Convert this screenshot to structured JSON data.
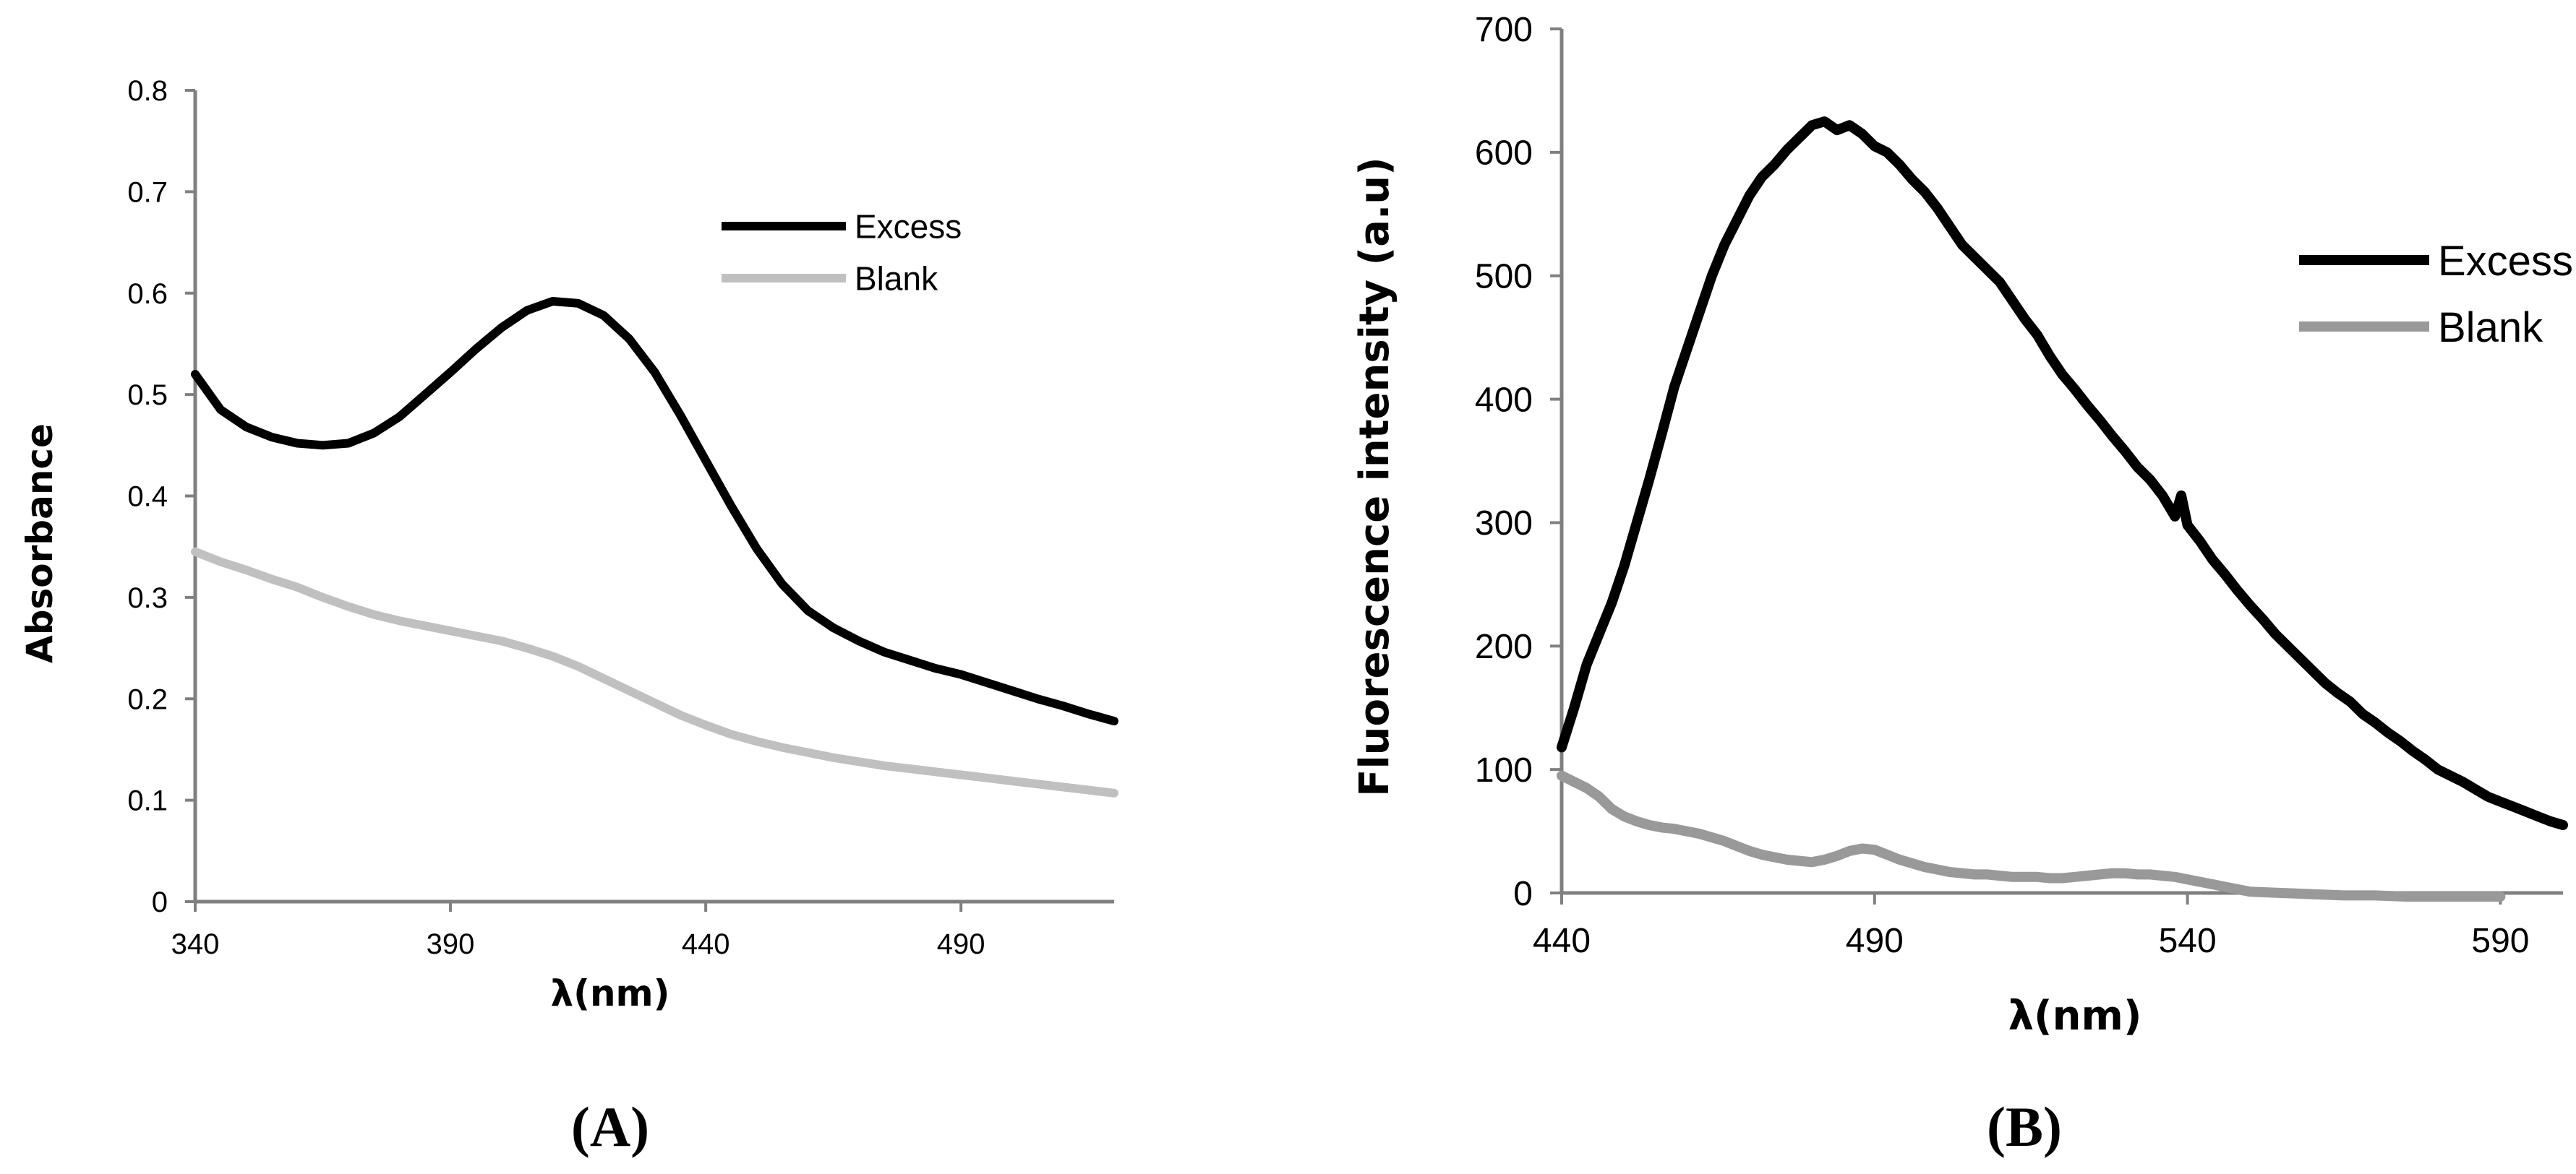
{
  "chart_data": [
    {
      "type": "line",
      "panel_label": "(A)",
      "xlabel": "λ(nm)",
      "ylabel": "Absorbance",
      "xlim": [
        340,
        520
      ],
      "ylim": [
        0,
        0.8
      ],
      "xticks": [
        340,
        390,
        440,
        490
      ],
      "xtick_labels": [
        "340",
        "390",
        "440",
        "490"
      ],
      "yticks": [
        0,
        0.1,
        0.2,
        0.3,
        0.4,
        0.5,
        0.6,
        0.7,
        0.8
      ],
      "ytick_labels": [
        "0",
        "0.1",
        "0.2",
        "0.3",
        "0.4",
        "0.5",
        "0.6",
        "0.7",
        "0.8"
      ],
      "grid": false,
      "legend_position": "top-right",
      "series": [
        {
          "name": "Excess",
          "color": "#000000",
          "x": [
            340,
            345,
            350,
            355,
            360,
            365,
            370,
            375,
            380,
            385,
            390,
            395,
            400,
            405,
            410,
            415,
            420,
            425,
            430,
            435,
            440,
            445,
            450,
            455,
            460,
            465,
            470,
            475,
            480,
            485,
            490,
            495,
            500,
            505,
            510,
            515,
            520
          ],
          "y": [
            0.52,
            0.485,
            0.468,
            0.458,
            0.452,
            0.45,
            0.452,
            0.462,
            0.478,
            0.5,
            0.522,
            0.545,
            0.566,
            0.583,
            0.592,
            0.59,
            0.578,
            0.555,
            0.522,
            0.48,
            0.435,
            0.39,
            0.348,
            0.313,
            0.287,
            0.27,
            0.257,
            0.246,
            0.238,
            0.23,
            0.224,
            0.216,
            0.208,
            0.2,
            0.193,
            0.185,
            0.178
          ]
        },
        {
          "name": "Blank",
          "color": "#c0c0c0",
          "x": [
            340,
            345,
            350,
            355,
            360,
            365,
            370,
            375,
            380,
            385,
            390,
            395,
            400,
            405,
            410,
            415,
            420,
            425,
            430,
            435,
            440,
            445,
            450,
            455,
            460,
            465,
            470,
            475,
            480,
            485,
            490,
            495,
            500,
            505,
            510,
            515,
            520
          ],
          "y": [
            0.345,
            0.335,
            0.327,
            0.318,
            0.31,
            0.3,
            0.291,
            0.283,
            0.277,
            0.272,
            0.267,
            0.262,
            0.257,
            0.25,
            0.242,
            0.232,
            0.22,
            0.208,
            0.196,
            0.184,
            0.174,
            0.165,
            0.158,
            0.152,
            0.147,
            0.142,
            0.138,
            0.134,
            0.131,
            0.128,
            0.125,
            0.122,
            0.119,
            0.116,
            0.113,
            0.11,
            0.107
          ]
        }
      ]
    },
    {
      "type": "line",
      "panel_label": "(B)",
      "xlabel": "λ(nm)",
      "ylabel": "Fluorescence intensity (a.u)",
      "xlim": [
        440,
        600
      ],
      "ylim": [
        0,
        700
      ],
      "xticks": [
        440,
        490,
        540,
        590
      ],
      "xtick_labels": [
        "440",
        "490",
        "540",
        "590"
      ],
      "yticks": [
        0,
        100,
        200,
        300,
        400,
        500,
        600,
        700
      ],
      "ytick_labels": [
        "0",
        "100",
        "200",
        "300",
        "400",
        "500",
        "600",
        "700"
      ],
      "grid": false,
      "legend_position": "top-right",
      "series": [
        {
          "name": "Excess",
          "color": "#000000",
          "x": [
            440,
            442,
            444,
            446,
            448,
            450,
            452,
            454,
            456,
            458,
            460,
            462,
            464,
            466,
            468,
            470,
            472,
            474,
            476,
            478,
            480,
            482,
            484,
            486,
            488,
            490,
            492,
            494,
            496,
            498,
            500,
            502,
            504,
            506,
            508,
            510,
            512,
            514,
            516,
            518,
            520,
            522,
            524,
            526,
            528,
            530,
            532,
            534,
            536,
            538,
            539,
            540,
            542,
            544,
            546,
            548,
            550,
            552,
            554,
            556,
            558,
            560,
            562,
            564,
            566,
            568,
            570,
            572,
            574,
            576,
            578,
            580,
            582,
            584,
            586,
            588,
            590,
            592,
            594,
            596,
            598,
            600
          ],
          "y": [
            118,
            150,
            185,
            210,
            235,
            265,
            300,
            335,
            372,
            410,
            440,
            470,
            500,
            525,
            545,
            565,
            580,
            590,
            602,
            612,
            622,
            625,
            618,
            622,
            615,
            605,
            600,
            590,
            578,
            568,
            555,
            540,
            525,
            515,
            505,
            495,
            480,
            465,
            452,
            435,
            420,
            408,
            395,
            383,
            370,
            358,
            345,
            335,
            322,
            305,
            322,
            298,
            285,
            270,
            258,
            245,
            233,
            222,
            210,
            200,
            190,
            180,
            170,
            162,
            155,
            145,
            138,
            130,
            123,
            115,
            108,
            100,
            95,
            90,
            84,
            78,
            74,
            70,
            66,
            62,
            58,
            55
          ]
        },
        {
          "name": "Blank",
          "color": "#999999",
          "x": [
            440,
            442,
            444,
            446,
            448,
            450,
            452,
            454,
            456,
            458,
            460,
            462,
            464,
            466,
            468,
            470,
            472,
            474,
            476,
            478,
            480,
            482,
            484,
            486,
            488,
            490,
            492,
            494,
            496,
            498,
            500,
            502,
            504,
            506,
            508,
            510,
            512,
            514,
            516,
            518,
            520,
            522,
            524,
            526,
            528,
            530,
            532,
            534,
            536,
            538,
            540,
            542,
            544,
            546,
            548,
            550,
            555,
            560,
            565,
            570,
            575,
            580,
            585,
            590
          ],
          "y": [
            95,
            90,
            85,
            78,
            68,
            62,
            58,
            55,
            53,
            52,
            50,
            48,
            45,
            42,
            38,
            34,
            31,
            29,
            27,
            26,
            25,
            27,
            30,
            34,
            36,
            35,
            31,
            27,
            24,
            21,
            19,
            17,
            16,
            15,
            15,
            14,
            13,
            13,
            13,
            12,
            12,
            13,
            14,
            15,
            16,
            16,
            15,
            15,
            14,
            13,
            11,
            9,
            7,
            5,
            3,
            1,
            0,
            -1,
            -2,
            -2,
            -3,
            -3,
            -3,
            -3
          ]
        }
      ]
    }
  ]
}
